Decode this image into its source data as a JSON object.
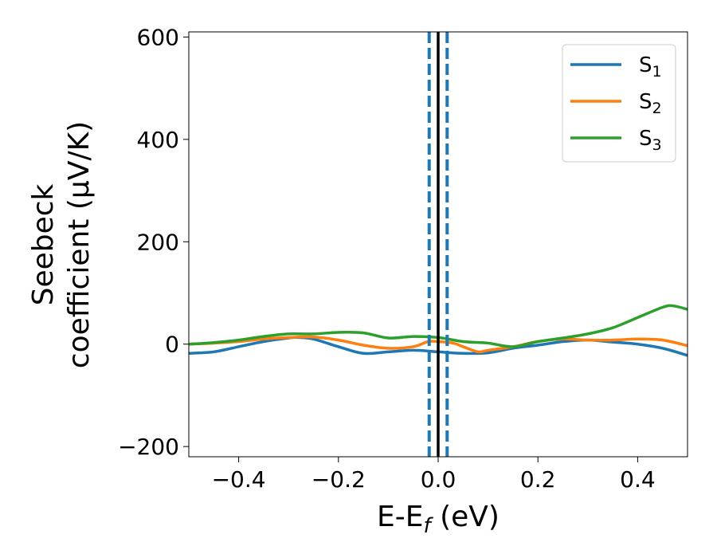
{
  "chart_data": {
    "type": "line",
    "xlabel": "E-E_f (eV)",
    "xlabel_main": "E-E",
    "xlabel_sub": "f",
    "xlabel_units": " (eV)",
    "ylabel_line1": "Seebeck",
    "ylabel_line2": "coefficient  (μV/K)",
    "xlim": [
      -0.5,
      0.5
    ],
    "ylim": [
      -220,
      610
    ],
    "xticks": [
      -0.4,
      -0.2,
      0.0,
      0.2,
      0.4
    ],
    "xtick_labels": [
      "−0.4",
      "−0.2",
      "0.0",
      "0.2",
      "0.4"
    ],
    "yticks": [
      -200,
      0,
      200,
      400,
      600
    ],
    "ytick_labels": [
      "−200",
      "0",
      "200",
      "400",
      "600"
    ],
    "grid": false,
    "legend_position": "top-right",
    "series": [
      {
        "name": "S1",
        "name_main": "S",
        "name_sub": "1",
        "color": "#1f77b4",
        "x": [
          -0.5,
          -0.45,
          -0.4,
          -0.35,
          -0.3,
          -0.28,
          -0.25,
          -0.2,
          -0.15,
          -0.1,
          -0.05,
          0.0,
          0.05,
          0.1,
          0.15,
          0.2,
          0.25,
          0.3,
          0.35,
          0.4,
          0.45,
          0.5
        ],
        "y": [
          -18,
          -15,
          -5,
          5,
          12,
          13,
          10,
          -5,
          -18,
          -15,
          -12,
          -15,
          -18,
          -17,
          -8,
          -2,
          5,
          8,
          4,
          0,
          -8,
          -22
        ]
      },
      {
        "name": "S2",
        "name_main": "S",
        "name_sub": "2",
        "color": "#ff7f0e",
        "x": [
          -0.5,
          -0.45,
          -0.4,
          -0.35,
          -0.3,
          -0.25,
          -0.2,
          -0.15,
          -0.1,
          -0.05,
          -0.02,
          0.0,
          0.03,
          0.05,
          0.08,
          0.1,
          0.15,
          0.2,
          0.25,
          0.3,
          0.35,
          0.4,
          0.45,
          0.5
        ],
        "y": [
          0,
          2,
          5,
          10,
          13,
          14,
          8,
          -2,
          -8,
          -5,
          5,
          5,
          2,
          -5,
          -15,
          -12,
          -5,
          5,
          10,
          8,
          8,
          10,
          8,
          -3
        ]
      },
      {
        "name": "S3",
        "name_main": "S",
        "name_sub": "3",
        "color": "#2ca02c",
        "x": [
          -0.5,
          -0.45,
          -0.4,
          -0.35,
          -0.3,
          -0.25,
          -0.2,
          -0.15,
          -0.1,
          -0.05,
          0.0,
          0.05,
          0.1,
          0.15,
          0.2,
          0.25,
          0.3,
          0.35,
          0.4,
          0.45,
          0.47,
          0.5
        ],
        "y": [
          0,
          3,
          8,
          15,
          20,
          20,
          23,
          22,
          12,
          15,
          13,
          5,
          2,
          -5,
          5,
          12,
          20,
          32,
          52,
          72,
          75,
          68
        ]
      }
    ],
    "vlines": [
      {
        "x": 0.0,
        "color": "#000000",
        "style": "solid"
      },
      {
        "x": -0.018,
        "color": "#1f77b4",
        "style": "dashed"
      },
      {
        "x": 0.018,
        "color": "#1f77b4",
        "style": "dashed"
      }
    ]
  }
}
